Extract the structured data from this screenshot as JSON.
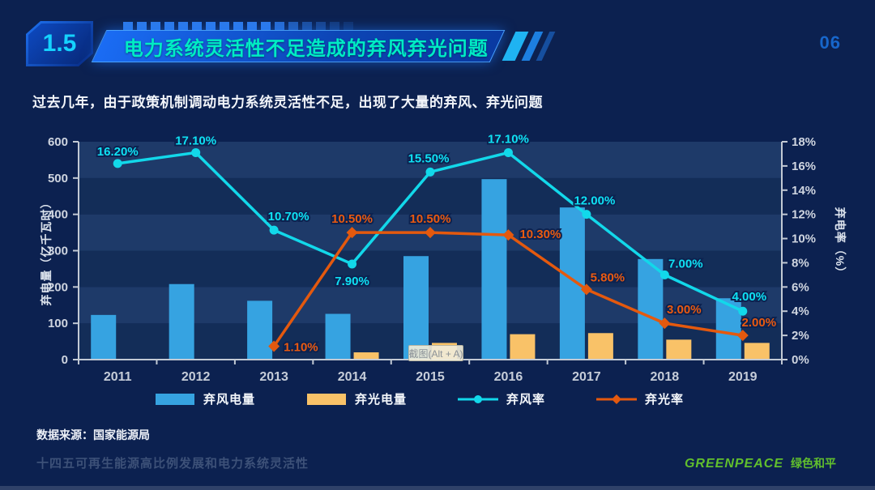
{
  "header": {
    "section_number": "1.5",
    "title": "电力系统灵活性不足造成的弃风弃光问题",
    "page_number": "06"
  },
  "subtitle": "过去几年，由于政策机制调动电力系统灵活性不足，出现了大量的弃风、弃光问题",
  "chart_data": {
    "type": "combo-bar-line",
    "categories": [
      "2011",
      "2012",
      "2013",
      "2014",
      "2015",
      "2016",
      "2017",
      "2018",
      "2019"
    ],
    "bar_series": [
      {
        "name": "弃风电量",
        "color": "#36a3e1",
        "values": [
          123,
          208,
          162,
          126,
          285,
          497,
          419,
          277,
          169
        ]
      },
      {
        "name": "弃光电量",
        "color": "#f9c268",
        "values": [
          null,
          null,
          null,
          20,
          46,
          70,
          73,
          55,
          46
        ]
      }
    ],
    "line_series": [
      {
        "name": "弃风率",
        "color": "#12d8ea",
        "label_color": "#0fe1f3",
        "marker": "circle",
        "values": [
          16.2,
          17.1,
          10.7,
          7.9,
          15.5,
          17.1,
          12.0,
          7.0,
          4.0
        ],
        "labels": [
          "16.20%",
          "17.10%",
          "10.70%",
          "7.90%",
          "15.50%",
          "17.10%",
          "12.00%",
          "7.00%",
          "4.00%"
        ]
      },
      {
        "name": "弃光率",
        "color": "#e4590e",
        "label_color": "#ea5a10",
        "marker": "diamond",
        "values": [
          null,
          null,
          1.1,
          10.5,
          10.5,
          10.3,
          5.8,
          3.0,
          2.0
        ],
        "labels": [
          null,
          null,
          "1.10%",
          "10.50%",
          "10.50%",
          "10.30%",
          "5.80%",
          "3.00%",
          "2.00%"
        ]
      }
    ],
    "left_axis": {
      "title": "弃电量（亿千瓦时）",
      "ticks": [
        0,
        100,
        200,
        300,
        400,
        500,
        600
      ],
      "range": [
        0,
        600
      ]
    },
    "right_axis": {
      "title": "弃电率（%）",
      "ticks": [
        "0%",
        "2%",
        "4%",
        "6%",
        "8%",
        "10%",
        "12%",
        "14%",
        "16%",
        "18%"
      ],
      "range": [
        0,
        18
      ]
    },
    "legend_position": "bottom",
    "grid": "horizontal-bands",
    "band_colors": [
      "#132d58",
      "#1e3a69"
    ]
  },
  "screenshot_tooltip": {
    "text": "截图(Alt + A)"
  },
  "footer": {
    "source": "数据来源：国家能源局",
    "report_title": "十四五可再生能源高比例发展和电力系统灵活性",
    "logo_text": "GREENPEACE",
    "logo_cn": "绿色和平"
  },
  "theme": {
    "background": "#0c2150",
    "banner_text": "#00ecc4",
    "bar_blue": "#36a3e1",
    "bar_orange": "#f9c268",
    "line_cyan": "#12d8ea",
    "line_orange": "#e4590e",
    "logo_green": "#61bf2d"
  }
}
